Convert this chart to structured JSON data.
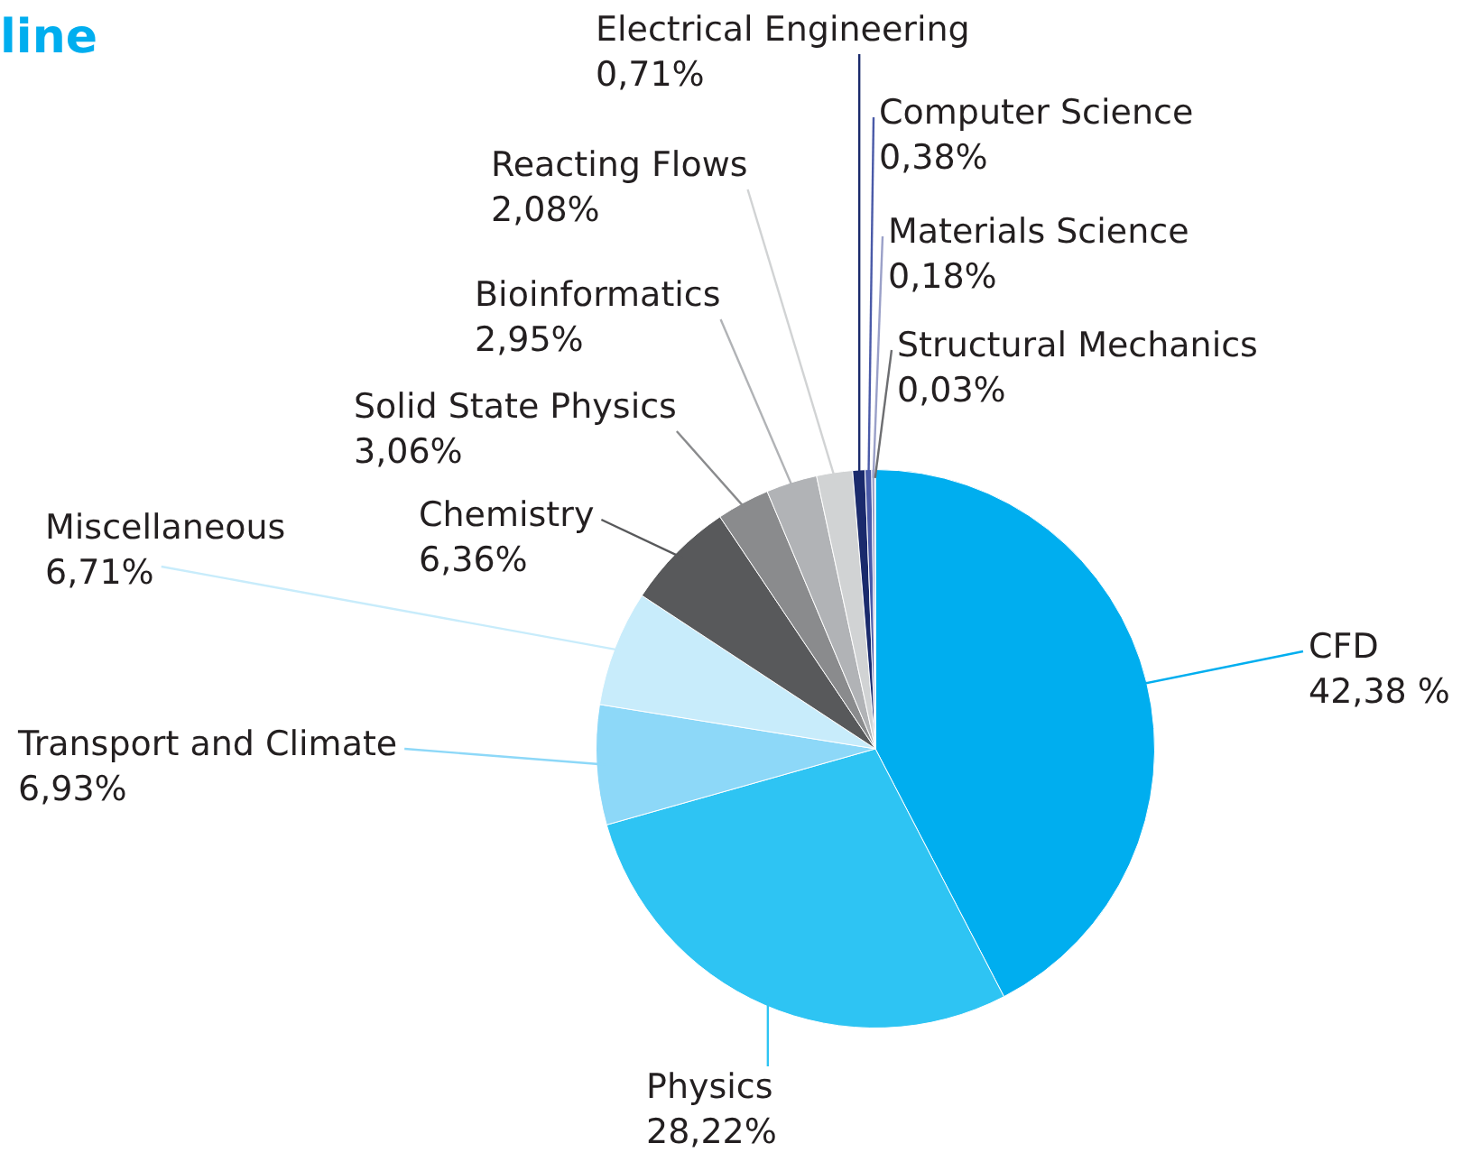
{
  "chart_data": {
    "type": "pie",
    "title": "line",
    "categories": [
      "CFD",
      "Physics",
      "Transport and Climate",
      "Miscellaneous",
      "Chemistry",
      "Solid State Physics",
      "Bioinformatics",
      "Reacting Flows",
      "Electrical Engineering",
      "Computer Science",
      "Materials Science",
      "Structural Mechanics"
    ],
    "values": [
      42.38,
      28.22,
      6.93,
      6.71,
      6.36,
      3.06,
      2.95,
      2.08,
      0.71,
      0.38,
      0.18,
      0.03
    ],
    "value_labels": [
      "42,38 %",
      "28,22%",
      "6,93%",
      "6,71%",
      "6,36%",
      "3,06%",
      "2,95%",
      "2,08%",
      "0,71%",
      "0,38%",
      "0,18%",
      "0,03%"
    ],
    "colors": [
      "#00aeef",
      "#2ec4f3",
      "#8dd8f8",
      "#c8ecfb",
      "#58595b",
      "#8a8b8d",
      "#b1b3b6",
      "#d1d3d4",
      "#1a2a6c",
      "#4a5aa8",
      "#9aa0c8",
      "#6d6e71"
    ],
    "legend": false
  }
}
